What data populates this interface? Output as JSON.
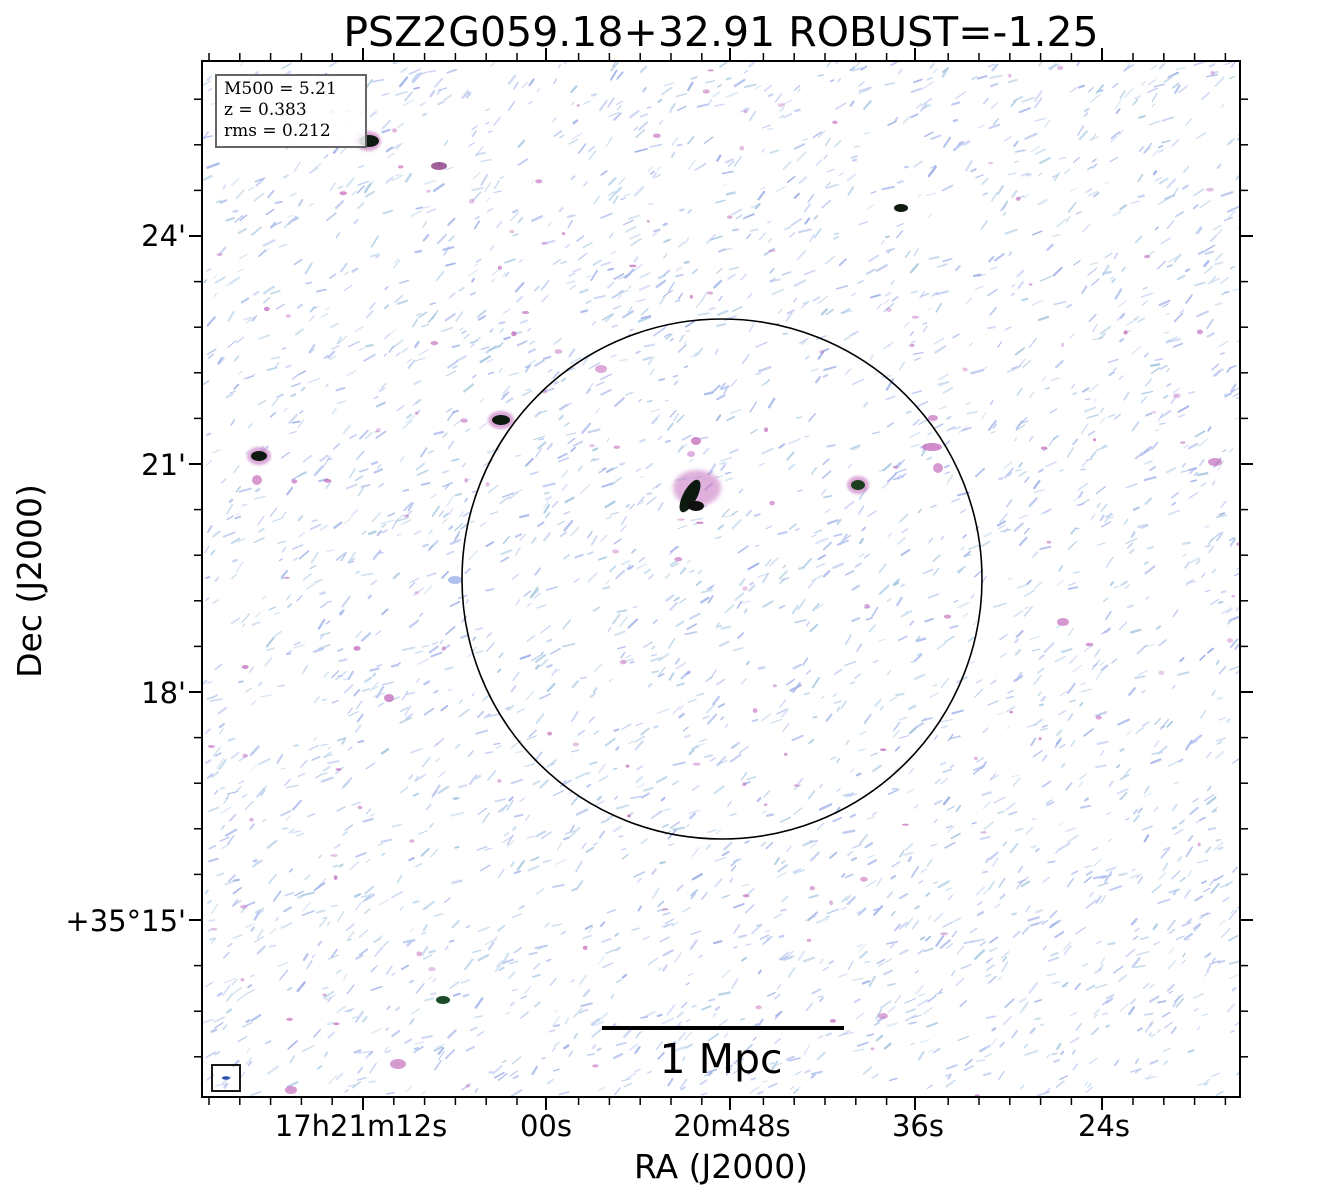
{
  "title": "PSZ2G059.18+32.91 ROBUST=-1.25",
  "info": {
    "mass_line": "M500 = 5.21",
    "redshift_line": "z = 0.383",
    "rms_line": "rms = 0.212"
  },
  "axes": {
    "xlabel": "RA (J2000)",
    "ylabel": "Dec (J2000)",
    "xticks": [
      "17h21m12s",
      "00s",
      "20m48s",
      "36s",
      "24s"
    ],
    "yticks": [
      "24'",
      "21'",
      "18'",
      "+35°15'"
    ]
  },
  "scale_bar": {
    "label": "1 Mpc"
  },
  "colors": {
    "noise_blue": "#a9b9ec",
    "noise_pink": "#c46fbe",
    "source_core": "#0d1a10",
    "circle": "#000000"
  },
  "overlays": {
    "circle": "r500 circle",
    "beam": "beam-ellipse"
  }
}
